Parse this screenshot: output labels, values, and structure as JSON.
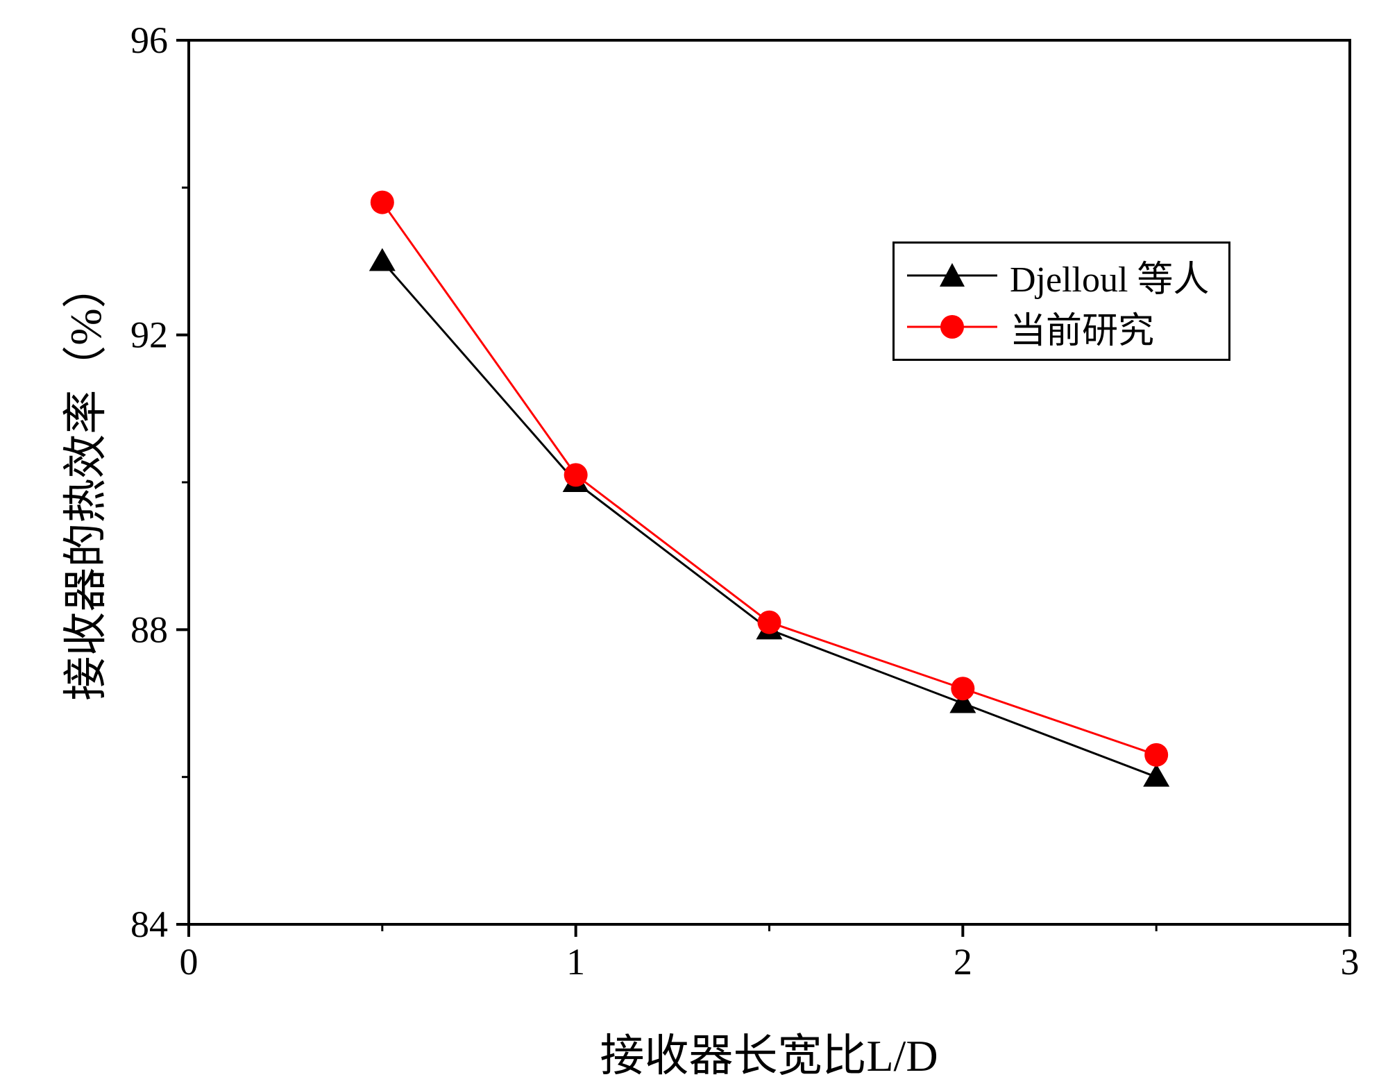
{
  "chart_data": {
    "type": "line",
    "title": "",
    "xlabel": "接收器长宽比L/D",
    "ylabel": "接收器的热效率（%）",
    "xlim": [
      0,
      3
    ],
    "ylim": [
      84,
      96
    ],
    "xticks": [
      0,
      1,
      2,
      3
    ],
    "yticks": [
      84,
      88,
      92,
      96
    ],
    "xminor": [
      0.5,
      1.5,
      2.5
    ],
    "yminor": [
      86,
      90,
      94
    ],
    "grid": false,
    "legend_position": "upper-right",
    "x": [
      0.5,
      1.0,
      1.5,
      2.0,
      2.5
    ],
    "series": [
      {
        "name": "Djelloul 等人",
        "color": "#000000",
        "marker": "triangle",
        "values": [
          93.0,
          90.0,
          88.0,
          87.0,
          86.0
        ]
      },
      {
        "name": "当前研究",
        "color": "#ff0000",
        "marker": "circle",
        "values": [
          93.8,
          90.1,
          88.1,
          87.2,
          86.3
        ]
      }
    ]
  }
}
